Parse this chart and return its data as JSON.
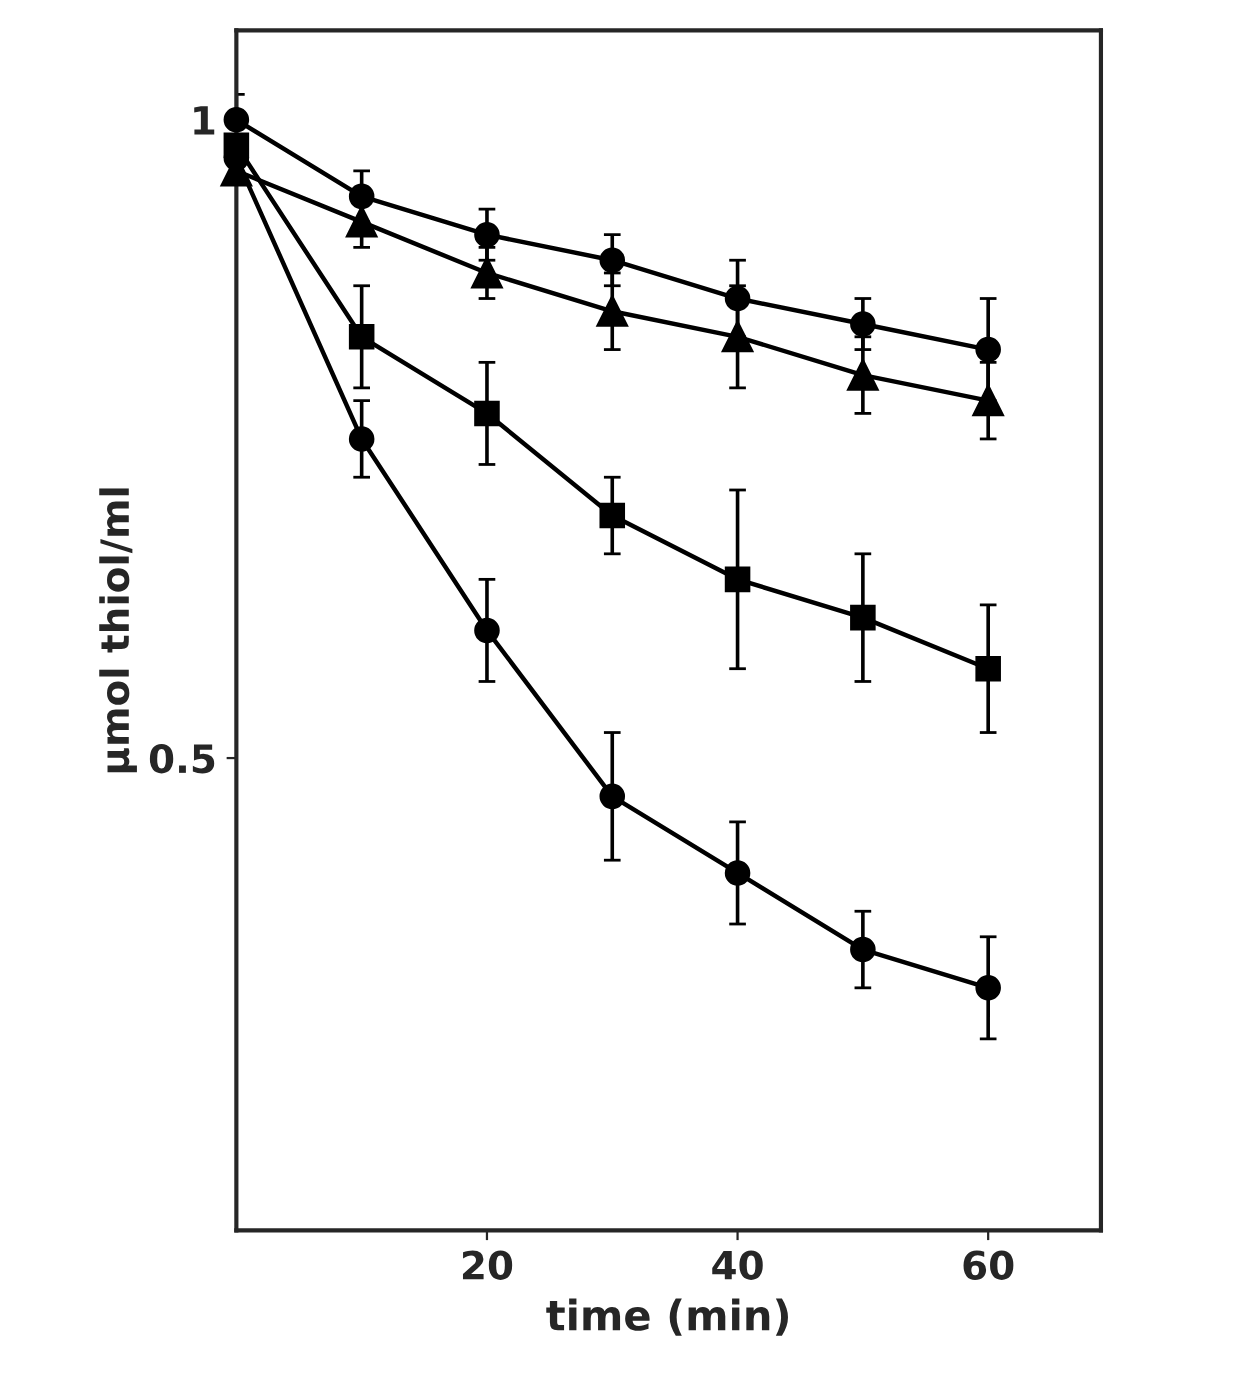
{
  "chart_data": {
    "type": "line",
    "xlabel": "time (min)",
    "ylabel": "µmol thiol/ml",
    "x": [
      0,
      10,
      20,
      30,
      40,
      50,
      60
    ],
    "series": [
      {
        "color": "#000000",
        "marker": "circle",
        "values": [
          1.0,
          0.94,
          0.91,
          0.89,
          0.86,
          0.84,
          0.82
        ],
        "errors": [
          0.02,
          0.02,
          0.02,
          0.02,
          0.03,
          0.02,
          0.04
        ]
      },
      {
        "color": "#000000",
        "marker": "triangle",
        "values": [
          0.96,
          0.92,
          0.88,
          0.85,
          0.83,
          0.8,
          0.78
        ],
        "errors": [
          null,
          0.02,
          0.02,
          0.03,
          0.04,
          0.03,
          0.03
        ]
      },
      {
        "color": "#000000",
        "marker": "square",
        "values": [
          0.98,
          0.83,
          0.77,
          0.69,
          0.64,
          0.61,
          0.57
        ],
        "errors": [
          null,
          0.04,
          0.04,
          0.03,
          0.07,
          0.05,
          0.05
        ]
      },
      {
        "color": "#000000",
        "marker": "circle",
        "values": [
          0.97,
          0.75,
          0.6,
          0.47,
          0.41,
          0.35,
          0.32
        ],
        "errors": [
          null,
          0.03,
          0.04,
          0.05,
          0.04,
          0.03,
          0.04
        ]
      }
    ],
    "xlim": [
      0,
      69
    ],
    "xticks": [
      20,
      40,
      60
    ],
    "ylim": [
      0.13,
      1.07
    ],
    "yticks": [
      0.5,
      1
    ],
    "grid": false,
    "legend": false,
    "line_style": "solid"
  }
}
